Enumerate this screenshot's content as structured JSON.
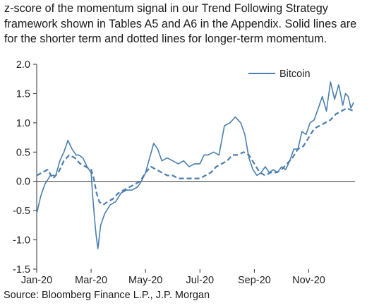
{
  "caption": {
    "lines": [
      "z-score of the momentum signal in our Trend Following Strategy",
      "framework shown in Tables A5 and A6 in the Appendix. Solid lines are",
      "for the shorter term and dotted lines for longer-term momentum."
    ]
  },
  "source": "Source: Bloomberg Finance L.P., J.P. Morgan",
  "colors": {
    "series": "#4a7eb0",
    "axis": "#333333"
  },
  "chart_data": {
    "type": "line",
    "title": "",
    "xlabel": "",
    "ylabel": "",
    "ylim": [
      -1.5,
      2.0
    ],
    "yticks": [
      "2.0",
      "1.5",
      "1.0",
      "0.5",
      "0.0",
      "-0.5",
      "-1.0",
      "-1.5"
    ],
    "ytick_values": [
      2.0,
      1.5,
      1.0,
      0.5,
      0.0,
      -0.5,
      -1.0,
      -1.5
    ],
    "xtick_labels": [
      "Jan-20",
      "Mar-20",
      "May-20",
      "Jul-20",
      "Sep-20",
      "Nov-20"
    ],
    "xtick_positions": [
      0,
      2,
      4,
      6,
      8,
      10
    ],
    "xlim": [
      0,
      11.7
    ],
    "grid": false,
    "legend": {
      "placement": "top-right",
      "entries": [
        "Bitcoin"
      ]
    },
    "series": [
      {
        "name": "Bitcoin",
        "style": "solid",
        "x": [
          0,
          0.15,
          0.3,
          0.5,
          0.7,
          0.85,
          1.0,
          1.15,
          1.3,
          1.45,
          1.55,
          1.7,
          1.85,
          2.0,
          2.05,
          2.12,
          2.18,
          2.25,
          2.35,
          2.5,
          2.7,
          2.9,
          3.1,
          3.3,
          3.5,
          3.7,
          3.85,
          4.0,
          4.15,
          4.3,
          4.45,
          4.6,
          4.8,
          5.0,
          5.2,
          5.4,
          5.6,
          5.8,
          6.0,
          6.15,
          6.3,
          6.5,
          6.7,
          6.9,
          7.1,
          7.3,
          7.5,
          7.65,
          7.8,
          7.95,
          8.1,
          8.25,
          8.4,
          8.55,
          8.7,
          8.85,
          9.0,
          9.15,
          9.3,
          9.45,
          9.6,
          9.75,
          9.9,
          10.05,
          10.2,
          10.35,
          10.5,
          10.65,
          10.8,
          10.95,
          11.1,
          11.25,
          11.35,
          11.45,
          11.55,
          11.65
        ],
        "y": [
          -0.55,
          -0.25,
          -0.05,
          0.1,
          0.1,
          0.35,
          0.5,
          0.7,
          0.55,
          0.45,
          0.45,
          0.4,
          0.25,
          0.15,
          -0.2,
          -0.6,
          -0.9,
          -1.15,
          -0.75,
          -0.55,
          -0.4,
          -0.35,
          -0.2,
          -0.15,
          -0.15,
          -0.1,
          0.0,
          0.15,
          0.4,
          0.65,
          0.55,
          0.35,
          0.4,
          0.35,
          0.3,
          0.35,
          0.25,
          0.3,
          0.3,
          0.45,
          0.45,
          0.5,
          0.45,
          0.95,
          1.0,
          1.1,
          1.0,
          0.8,
          0.4,
          0.2,
          0.1,
          0.15,
          0.25,
          0.15,
          0.2,
          0.15,
          0.25,
          0.2,
          0.35,
          0.55,
          0.55,
          0.85,
          0.8,
          1.0,
          1.05,
          1.25,
          1.45,
          1.2,
          1.7,
          1.4,
          1.65,
          1.3,
          1.5,
          1.45,
          1.25,
          1.35
        ]
      },
      {
        "name": "",
        "style": "dashed",
        "x": [
          0,
          0.2,
          0.4,
          0.6,
          0.8,
          1.0,
          1.2,
          1.4,
          1.6,
          1.8,
          2.0,
          2.1,
          2.2,
          2.3,
          2.45,
          2.6,
          2.8,
          3.0,
          3.2,
          3.4,
          3.6,
          3.8,
          4.0,
          4.2,
          4.4,
          4.6,
          4.8,
          5.0,
          5.2,
          5.4,
          5.6,
          5.8,
          6.0,
          6.2,
          6.4,
          6.6,
          6.8,
          7.0,
          7.2,
          7.4,
          7.6,
          7.8,
          8.0,
          8.2,
          8.4,
          8.6,
          8.8,
          9.0,
          9.2,
          9.4,
          9.6,
          9.8,
          10.0,
          10.2,
          10.4,
          10.6,
          10.8,
          11.0,
          11.2,
          11.4,
          11.65
        ],
        "y": [
          0.1,
          0.15,
          0.2,
          0.05,
          0.15,
          0.35,
          0.45,
          0.4,
          0.3,
          0.25,
          0.2,
          0.05,
          -0.2,
          -0.35,
          -0.4,
          -0.35,
          -0.3,
          -0.2,
          -0.15,
          -0.1,
          -0.05,
          0.0,
          0.15,
          0.25,
          0.2,
          0.15,
          0.1,
          0.1,
          0.05,
          0.05,
          0.05,
          0.05,
          0.05,
          0.1,
          0.15,
          0.25,
          0.3,
          0.35,
          0.45,
          0.45,
          0.5,
          0.45,
          0.3,
          0.15,
          0.1,
          0.15,
          0.15,
          0.2,
          0.3,
          0.4,
          0.55,
          0.6,
          0.75,
          0.9,
          0.95,
          1.0,
          1.05,
          1.15,
          1.2,
          1.25,
          1.2
        ]
      }
    ]
  }
}
